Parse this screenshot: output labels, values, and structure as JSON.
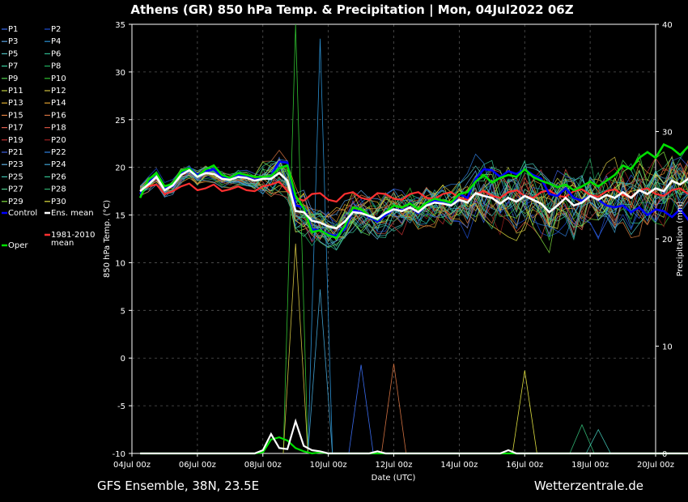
{
  "chart_data": {
    "type": "line",
    "title": "Athens  (GR)  850 hPa Temp. & Precipitation | Mon, 04Jul2022 06Z",
    "xlabel": "Date (UTC)",
    "ylabel": "850 hPa Temp. (°C)",
    "y2label": "Precipitation (mm)",
    "ylim": [
      -10,
      35
    ],
    "y2lim": [
      0,
      40
    ],
    "yticks": [
      "35",
      "30",
      "25",
      "20",
      "15",
      "10",
      "5",
      "0",
      "-5",
      "-10"
    ],
    "y2ticks": [
      "40",
      "30",
      "20",
      "10",
      "0"
    ],
    "xticks": [
      "04Jul 00z",
      "06Jul 00z",
      "08Jul 00z",
      "10Jul 00z",
      "12Jul 00z",
      "14Jul 00z",
      "16Jul 00z",
      "18Jul 00z",
      "20Jul 00z"
    ],
    "x_start": "2022-07-04 06z",
    "x_step_hours": 6,
    "grid": true,
    "legend_placement": "left",
    "footer_left": "GFS Ensemble, 38N, 23.5E",
    "footer_right": "Wetterzentrale.de",
    "legend": [
      {
        "label": "P1",
        "color": "#3a6cf0"
      },
      {
        "label": "P2",
        "color": "#1f4fd6"
      },
      {
        "label": "P3",
        "color": "#5aa0e0"
      },
      {
        "label": "P4",
        "color": "#2a8fd0"
      },
      {
        "label": "P5",
        "color": "#4fc0c0"
      },
      {
        "label": "P6",
        "color": "#2fb890"
      },
      {
        "label": "P7",
        "color": "#3ad0a0"
      },
      {
        "label": "P8",
        "color": "#20b060"
      },
      {
        "label": "P9",
        "color": "#50d050"
      },
      {
        "label": "P10",
        "color": "#30c030"
      },
      {
        "label": "P11",
        "color": "#c0d040"
      },
      {
        "label": "P12",
        "color": "#d0c040"
      },
      {
        "label": "P13",
        "color": "#e0b030"
      },
      {
        "label": "P14",
        "color": "#e0a030"
      },
      {
        "label": "P15",
        "color": "#e08040"
      },
      {
        "label": "P16",
        "color": "#d07040"
      },
      {
        "label": "P17",
        "color": "#e06050"
      },
      {
        "label": "P18",
        "color": "#d05040"
      },
      {
        "label": "P19",
        "color": "#c03030"
      },
      {
        "label": "P20",
        "color": "#a02020"
      },
      {
        "label": "P21",
        "color": "#4060e0"
      },
      {
        "label": "P22",
        "color": "#3080e0"
      },
      {
        "label": "P23",
        "color": "#60b0e0"
      },
      {
        "label": "P24",
        "color": "#40a0d0"
      },
      {
        "label": "P25",
        "color": "#40c0b0"
      },
      {
        "label": "P26",
        "color": "#30c090"
      },
      {
        "label": "P27",
        "color": "#50d090"
      },
      {
        "label": "P28",
        "color": "#30b070"
      },
      {
        "label": "P29",
        "color": "#80e040"
      },
      {
        "label": "P30",
        "color": "#e0e040"
      },
      {
        "label": "Control",
        "color": "#0000ff"
      },
      {
        "label": "Ens. mean",
        "color": "#ffffff"
      },
      {
        "label": "1981-2010 mean",
        "color": "#ff3030"
      },
      {
        "label": "Oper",
        "color": "#00e000"
      }
    ],
    "series": [
      {
        "name": "Control",
        "color": "#0000ff",
        "values": [
          17.2,
          18.5,
          19.0,
          17.8,
          18.0,
          19.3,
          20.0,
          19.2,
          19.6,
          19.8,
          19.0,
          18.8,
          19.2,
          19.0,
          18.7,
          18.9,
          19.1,
          20.6,
          20.5,
          16.0,
          15.8,
          13.5,
          13.4,
          13.0,
          12.8,
          13.5,
          15.5,
          15.3,
          14.8,
          14.3,
          15.0,
          15.6,
          15.5,
          15.8,
          15.2,
          16.0,
          16.5,
          16.3,
          16.0,
          17.2,
          16.8,
          18.8,
          19.8,
          19.7,
          19.0,
          19.6,
          19.3,
          19.8,
          19.2,
          18.8,
          17.2,
          17.0,
          17.8,
          16.8,
          16.5,
          17.0,
          16.6,
          16.0,
          15.8,
          16.0,
          15.3,
          15.8,
          15.0,
          15.6,
          15.4,
          14.8,
          15.6,
          14.5,
          14.9,
          14.0,
          12.5,
          13.4,
          15.2,
          15.0,
          12.8
        ]
      },
      {
        "name": "Ens. mean",
        "color": "#ffffff",
        "values": [
          17.5,
          18.2,
          19.0,
          17.6,
          18.1,
          19.2,
          19.7,
          19.0,
          19.4,
          19.3,
          18.8,
          18.7,
          19.0,
          18.9,
          18.6,
          18.8,
          18.8,
          19.4,
          18.6,
          15.4,
          15.3,
          14.4,
          14.2,
          13.8,
          13.6,
          14.3,
          15.3,
          15.2,
          14.9,
          14.6,
          15.2,
          15.6,
          15.4,
          15.8,
          15.3,
          16.0,
          16.3,
          16.2,
          16.0,
          16.6,
          16.3,
          17.3,
          17.0,
          16.8,
          16.2,
          16.8,
          16.4,
          17.0,
          16.6,
          16.2,
          15.3,
          16.0,
          16.8,
          16.0,
          16.3,
          17.0,
          16.6,
          17.1,
          16.8,
          17.4,
          16.8,
          17.6,
          17.2,
          17.8,
          17.5,
          18.6,
          18.2,
          18.8,
          18.6,
          19.0,
          18.3,
          19.4,
          20.0,
          20.2,
          19.6
        ]
      },
      {
        "name": "1981-2010 mean",
        "color": "#ff3030",
        "values": [
          17.6,
          18.0,
          18.2,
          17.2,
          17.5,
          18.0,
          18.3,
          17.6,
          17.8,
          18.2,
          17.5,
          17.7,
          18.0,
          17.6,
          17.5,
          18.0,
          18.2,
          18.5,
          17.5,
          16.8,
          16.5,
          17.2,
          17.3,
          16.6,
          16.4,
          17.2,
          17.4,
          16.8,
          16.6,
          17.3,
          17.2,
          16.7,
          16.6,
          17.2,
          17.4,
          16.8,
          16.7,
          17.2,
          17.4,
          16.8,
          16.6,
          17.2,
          17.5,
          17.0,
          16.8,
          17.4,
          17.6,
          17.0,
          16.8,
          17.4,
          17.6,
          17.0,
          16.9,
          17.5,
          17.7,
          17.1,
          16.9,
          17.5,
          17.7,
          17.1,
          16.9,
          17.6,
          17.8,
          17.2,
          17.0,
          17.6,
          17.8,
          17.2,
          17.0,
          17.6,
          17.8,
          17.3,
          17.0,
          17.4,
          16.8
        ]
      },
      {
        "name": "Oper",
        "color": "#00e000",
        "values": [
          16.8,
          18.7,
          19.4,
          18.0,
          18.3,
          19.6,
          19.9,
          19.0,
          19.8,
          20.2,
          19.2,
          18.9,
          19.4,
          19.2,
          19.0,
          19.0,
          19.1,
          19.9,
          20.2,
          17.0,
          15.7,
          13.2,
          13.4,
          12.9,
          12.6,
          13.8,
          15.8,
          15.6,
          14.9,
          14.5,
          15.3,
          16.0,
          15.8,
          16.2,
          15.6,
          16.3,
          16.7,
          16.5,
          16.3,
          17.2,
          17.4,
          18.5,
          19.2,
          18.4,
          18.9,
          19.2,
          19.0,
          19.8,
          19.0,
          18.6,
          18.3,
          17.9,
          18.2,
          17.6,
          18.0,
          18.5,
          18.0,
          18.6,
          19.2,
          20.2,
          19.8,
          21.0,
          21.6,
          21.0,
          22.4,
          22.0,
          21.3,
          22.2,
          23.0,
          22.6,
          22.0,
          23.5,
          24.2,
          23.6,
          23.2
        ]
      }
    ],
    "precip_series": [
      {
        "name": "Oper",
        "color": "#00e000",
        "spikes": [
          [
            15,
            0.1
          ],
          [
            16,
            1.3
          ],
          [
            17,
            1.5
          ],
          [
            18,
            1.2
          ],
          [
            19,
            0.5
          ],
          [
            20,
            0.2
          ],
          [
            22,
            0.1
          ]
        ]
      },
      {
        "name": "Ens. mean",
        "color": "#ffffff",
        "spikes": [
          [
            15,
            0.3
          ],
          [
            16,
            1.8
          ],
          [
            17,
            0.5
          ],
          [
            18,
            0.4
          ],
          [
            19,
            3.0
          ],
          [
            20,
            0.7
          ],
          [
            21,
            0.3
          ],
          [
            22,
            0.2
          ],
          [
            29,
            0.2
          ],
          [
            45,
            0.3
          ]
        ]
      }
    ]
  }
}
